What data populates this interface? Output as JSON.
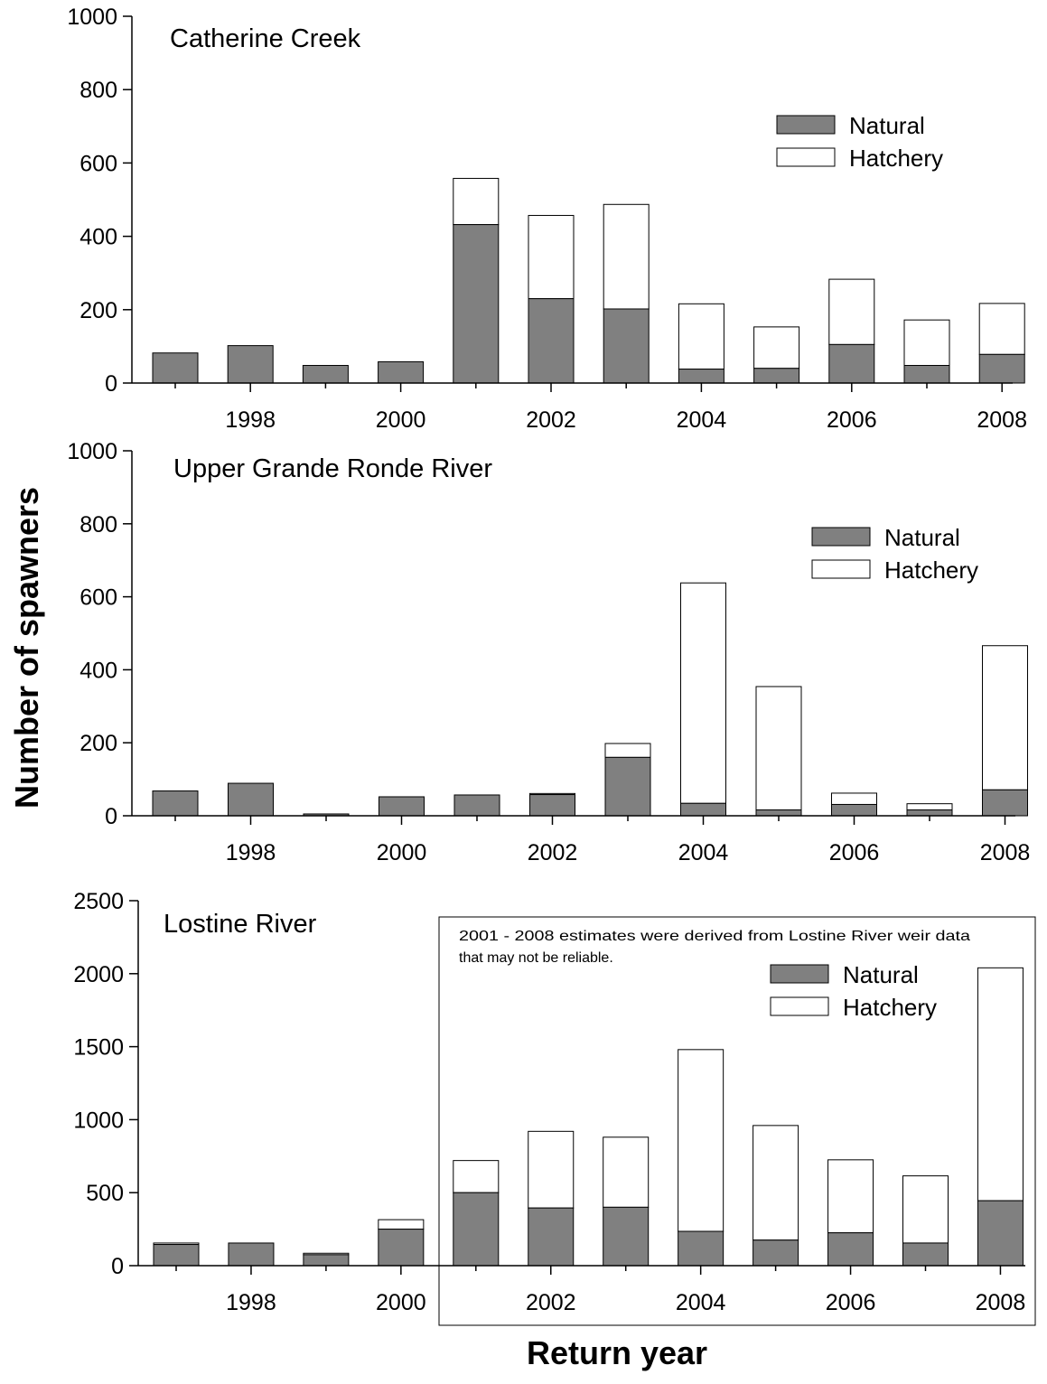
{
  "chart_data": {
    "type": "bar",
    "stacked": true,
    "ylabel": "Number of spawners",
    "xlabel": "Return year",
    "categories": [
      1997,
      1998,
      1999,
      2000,
      2001,
      2002,
      2003,
      2004,
      2005,
      2006,
      2007,
      2008
    ],
    "x_tick_labels": [
      "1998",
      "2000",
      "2002",
      "2004",
      "2006",
      "2008"
    ],
    "legend": [
      "Natural",
      "Hatchery"
    ],
    "colors": {
      "natural": "#808080",
      "hatchery": "#ffffff",
      "outline": "#000000"
    },
    "panels": [
      {
        "title": "Catherine Creek",
        "ylim": [
          0,
          1000
        ],
        "y_ticks": [
          "0",
          "200",
          "400",
          "600",
          "800",
          "1000"
        ],
        "legend_position": "upper-right",
        "series": [
          {
            "name": "Natural",
            "values": [
              82,
              102,
              48,
              58,
              432,
              230,
              202,
              38,
              40,
              105,
              48,
              78
            ]
          },
          {
            "name": "Hatchery",
            "values": [
              0,
              0,
              0,
              0,
              126,
              227,
              285,
              178,
              113,
              178,
              124,
              139
            ]
          }
        ]
      },
      {
        "title": "Upper Grande Ronde River",
        "ylim": [
          0,
          1000
        ],
        "y_ticks": [
          "0",
          "200",
          "400",
          "600",
          "800",
          "1000"
        ],
        "legend_position": "upper-right",
        "series": [
          {
            "name": "Natural",
            "values": [
              68,
              89,
              5,
              52,
              57,
              58,
              160,
              34,
              16,
              31,
              16,
              71
            ]
          },
          {
            "name": "Hatchery",
            "values": [
              0,
              0,
              0,
              0,
              0,
              3,
              38,
              604,
              338,
              31,
              17,
              395
            ]
          }
        ]
      },
      {
        "title": "Lostine River",
        "ylim": [
          0,
          2500
        ],
        "y_ticks": [
          "0",
          "500",
          "1000",
          "1500",
          "2000",
          "2500"
        ],
        "legend_position": "upper-right",
        "note": [
          "2001 - 2008 estimates were derived from Lostine River weir data",
          "that may not be reliable."
        ],
        "series": [
          {
            "name": "Natural",
            "values": [
              145,
              155,
              75,
              250,
              500,
              395,
              400,
              235,
              175,
              225,
              155,
              445
            ]
          },
          {
            "name": "Hatchery",
            "values": [
              10,
              0,
              10,
              65,
              220,
              525,
              480,
              1245,
              785,
              500,
              460,
              1595
            ]
          }
        ]
      }
    ]
  }
}
